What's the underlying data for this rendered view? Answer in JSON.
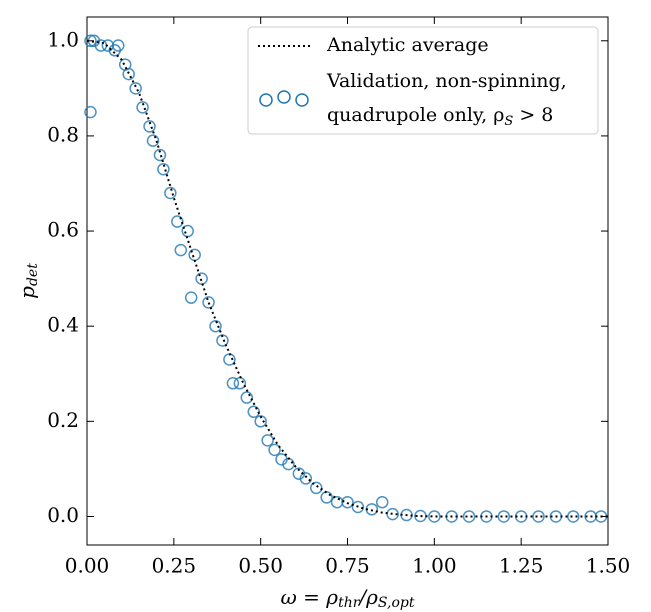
{
  "chart_data": {
    "type": "scatter",
    "xlabel": [
      "ω = ρ",
      "thr",
      "/ρ",
      "S,opt"
    ],
    "ylabel": [
      "p",
      "det"
    ],
    "xlim": [
      0,
      1.5
    ],
    "ylim": [
      -0.06,
      1.05
    ],
    "xticks": [
      {
        "value": 0,
        "label": "0.00"
      },
      0.25,
      {
        "value": 0.5,
        "label": "0.50"
      },
      0.75,
      {
        "value": 1,
        "label": "1.00"
      },
      1.25,
      {
        "value": 1.5,
        "label": "1.50"
      }
    ],
    "yticks": [
      {
        "value": 0,
        "label": "0.0"
      },
      0.2,
      0.4,
      0.6,
      0.8,
      {
        "value": 1,
        "label": "1.0"
      }
    ],
    "legend": "upper right",
    "line": {
      "name": "Analytic average",
      "color": "#000000",
      "x": [
        0,
        0.05,
        0.1,
        0.15,
        0.2,
        0.25,
        0.3,
        0.35,
        0.4,
        0.45,
        0.5,
        0.55,
        0.6,
        0.65,
        0.7,
        0.75,
        0.8,
        0.85,
        0.9,
        0.95,
        1.0,
        1.1,
        1.2,
        1.3,
        1.4,
        1.5
      ],
      "values": [
        1.0,
        0.995,
        0.96,
        0.89,
        0.79,
        0.67,
        0.56,
        0.45,
        0.36,
        0.28,
        0.21,
        0.15,
        0.105,
        0.07,
        0.045,
        0.028,
        0.016,
        0.008,
        0.004,
        0.001,
        0,
        0,
        0,
        0,
        0,
        0
      ]
    },
    "scatter": {
      "name": [
        "Validation, non-spinning,",
        "quadrupole only, ρ",
        "S",
        " > 8"
      ],
      "color": "#1f77b4",
      "x": [
        0.01,
        0.02,
        0.04,
        0.06,
        0.08,
        0.09,
        0.11,
        0.12,
        0.14,
        0.16,
        0.18,
        0.19,
        0.21,
        0.22,
        0.24,
        0.26,
        0.27,
        0.29,
        0.3,
        0.31,
        0.33,
        0.35,
        0.37,
        0.39,
        0.41,
        0.42,
        0.44,
        0.46,
        0.48,
        0.5,
        0.52,
        0.54,
        0.56,
        0.58,
        0.61,
        0.63,
        0.66,
        0.69,
        0.72,
        0.75,
        0.78,
        0.82,
        0.85,
        0.88,
        0.92,
        0.96,
        1.0,
        1.05,
        1.1,
        1.15,
        1.2,
        1.25,
        1.3,
        1.35,
        1.4,
        1.45,
        1.48,
        0.01
      ],
      "values": [
        1.0,
        1.0,
        0.99,
        0.99,
        0.98,
        0.99,
        0.95,
        0.93,
        0.9,
        0.86,
        0.82,
        0.79,
        0.76,
        0.73,
        0.68,
        0.62,
        0.56,
        0.6,
        0.46,
        0.55,
        0.5,
        0.45,
        0.4,
        0.37,
        0.33,
        0.28,
        0.28,
        0.25,
        0.22,
        0.2,
        0.16,
        0.14,
        0.12,
        0.11,
        0.09,
        0.08,
        0.06,
        0.04,
        0.03,
        0.03,
        0.02,
        0.015,
        0.03,
        0.005,
        0.003,
        0.001,
        0.0,
        0.0,
        0.0,
        0.0,
        0.0,
        0.0,
        0.0,
        0.0,
        0.0,
        0.0,
        0.0,
        0.85
      ]
    }
  }
}
